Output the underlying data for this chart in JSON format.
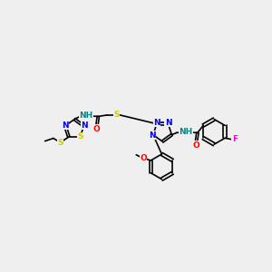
{
  "bg_color": "#efefef",
  "fig_size": [
    3.0,
    3.0
  ],
  "dpi": 100,
  "colors": {
    "N": "#0000ee",
    "S": "#cccc00",
    "O": "#ff0000",
    "F": "#ff00cc",
    "C": "#000000",
    "NH": "#008888",
    "H": "#008888"
  },
  "lw": 1.2,
  "fs": 6.5
}
